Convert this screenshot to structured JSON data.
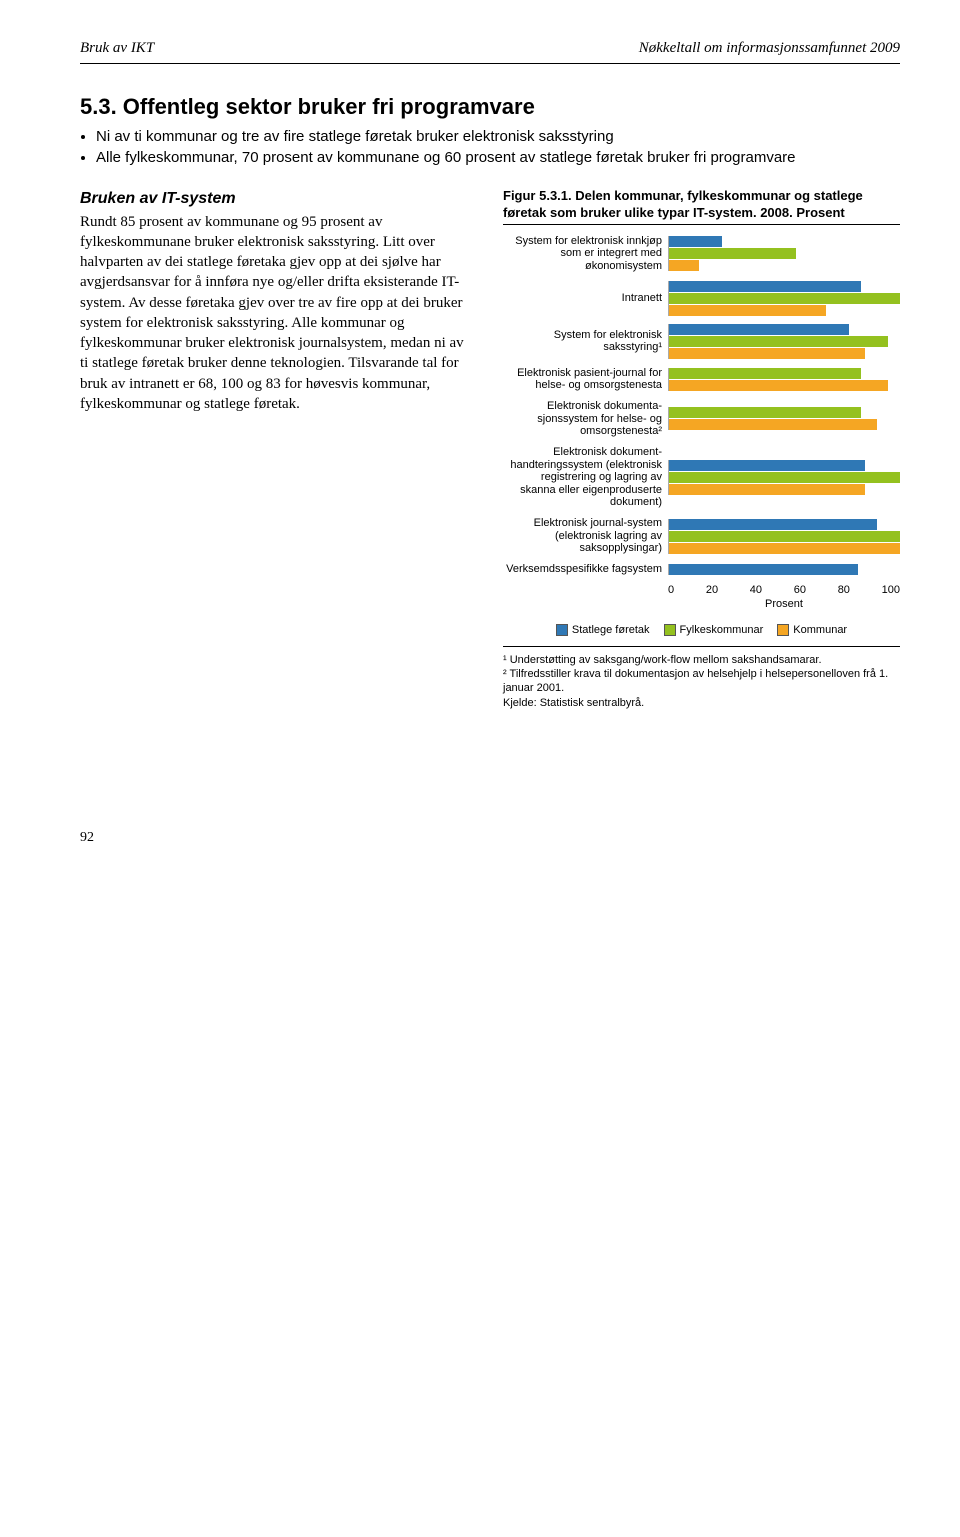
{
  "header": {
    "left": "Bruk av IKT",
    "right": "Nøkkeltall om informasjonssamfunnet 2009"
  },
  "section": {
    "heading": "5.3. Offentleg sektor bruker fri programvare",
    "bullets": [
      "Ni av ti kommunar og tre av fire statlege føretak bruker elektronisk saksstyring",
      "Alle fylkeskommunar, 70 prosent av kommunane og 60 prosent av statlege føretak bruker fri programvare"
    ]
  },
  "body": {
    "subhead": "Bruken av IT-system",
    "para": "Rundt 85 prosent av kommunane og 95 prosent av fylkeskommunane bruker elektronisk saksstyring. Litt over halvparten av dei statlege føretaka gjev opp at dei sjølve har avgjerdsansvar for å innføra nye og/eller drifta eksisterande IT-system. Av desse føretaka gjev over tre av fire opp at dei bruker system for elektronisk saksstyring. Alle kommunar og fylkeskommunar bruker elektronisk journalsystem, medan ni av ti statlege føretak bruker denne teknologien. Tilsvarande tal for bruk av intranett er 68, 100 og 83 for høvesvis kommunar, fylkeskommunar og statlege føretak."
  },
  "figure": {
    "title": "Figur 5.3.1. Delen kommunar, fylkeskommunar og statlege føretak som bruker ulike typar IT-system. 2008. Prosent",
    "xmax": 100,
    "ticks": [
      "0",
      "20",
      "40",
      "60",
      "80",
      "100"
    ],
    "axis_label": "Prosent",
    "colors": {
      "statlege": "#2f78b5",
      "fylkeskommunar": "#94c11f",
      "kommunar": "#f5a623"
    },
    "legend": [
      {
        "label": "Statlege føretak",
        "key": "statlege"
      },
      {
        "label": "Fylkeskommunar",
        "key": "fylkeskommunar"
      },
      {
        "label": "Kommunar",
        "key": "kommunar"
      }
    ],
    "categories": [
      {
        "label": "System for elektronisk innkjøp som er integrert med økonomisystem",
        "values": {
          "statlege": 23,
          "fylkeskommunar": 55,
          "kommunar": 13
        }
      },
      {
        "label": "Intranett",
        "values": {
          "statlege": 83,
          "fylkeskommunar": 100,
          "kommunar": 68
        }
      },
      {
        "label": "System for elektronisk saksstyring¹",
        "values": {
          "statlege": 78,
          "fylkeskommunar": 95,
          "kommunar": 85
        }
      },
      {
        "label": "Elektronisk pasient-journal for helse- og omsorgstenesta",
        "values": {
          "statlege": null,
          "fylkeskommunar": 83,
          "kommunar": 95
        }
      },
      {
        "label": "Elektronisk dokumenta-sjonssystem for helse- og omsorgstenesta²",
        "values": {
          "statlege": null,
          "fylkeskommunar": 83,
          "kommunar": 90
        }
      },
      {
        "label": "Elektronisk dokument-handteringssystem (elektronisk registrering og lagring av skanna eller eigenproduserte dokument)",
        "values": {
          "statlege": 85,
          "fylkeskommunar": 100,
          "kommunar": 85
        }
      },
      {
        "label": "Elektronisk journal-system (elektronisk lagring av saksopplysingar)",
        "values": {
          "statlege": 90,
          "fylkeskommunar": 100,
          "kommunar": 100
        }
      },
      {
        "label": "Verksemdsspesifikke fagsystem",
        "values": {
          "statlege": 82,
          "fylkeskommunar": null,
          "kommunar": null
        }
      }
    ],
    "footnotes": [
      "¹ Understøtting av saksgang/work-flow mellom sakshandsamarar.",
      "² Tilfredsstiller krava til dokumentasjon av helsehjelp i helsepersonelloven frå 1. januar 2001.",
      "Kjelde: Statistisk sentralbyrå."
    ]
  },
  "page_number": "92"
}
